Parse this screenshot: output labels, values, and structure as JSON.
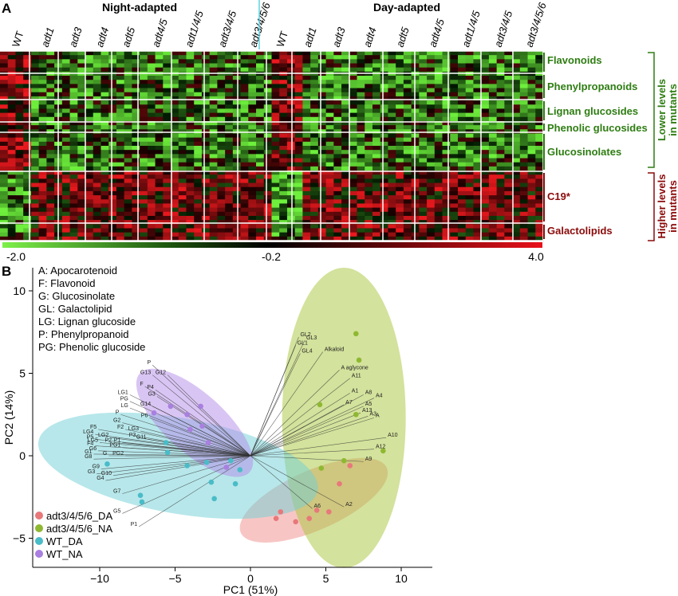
{
  "panel_a": {
    "label": "A",
    "header_left": "Night-adapted",
    "header_right": "Day-adapted",
    "columns_left": [
      "WT",
      "adt1",
      "adt3",
      "adt4",
      "adt5",
      "adt4/5",
      "adt1/4/5",
      "adt3/4/5",
      "adt3/4/5/6"
    ],
    "columns_right": [
      "WT",
      "adt1",
      "adt3",
      "adt4",
      "adt5",
      "adt4/5",
      "adt1/4/5",
      "adt3/4/5",
      "adt3/4/5/6"
    ],
    "groups_lower": [
      "Flavonoids",
      "Phenylpropanoids",
      "Lignan glucosides",
      "Phenolic glucosides",
      "Glucosinolates"
    ],
    "groups_higher": [
      "C19*",
      "Galactolipids"
    ],
    "lower_bracket_label": [
      "Lower levels",
      "in mutants"
    ],
    "higher_bracket_label": [
      "Higher levels",
      "in mutants"
    ],
    "scale_min": "-2.0",
    "scale_mid": "-0.2",
    "scale_max": "4.0",
    "colors": {
      "low": "#7df04a",
      "mid": "#000000",
      "high": "#e8101a",
      "lower_text": "#2e7d12",
      "higher_text": "#8b0a0a"
    }
  },
  "panel_b": {
    "label": "B",
    "abbreviations": [
      "A:    Apocarotenoid",
      "F:    Flavonoid",
      "G:    Glucosinolate",
      "GL: Galactolipid",
      "LG: Lignan glucoside",
      "P:    Phenylpropanoid",
      "PG: Phenolic glucoside"
    ],
    "chart_data": {
      "type": "scatter",
      "xlabel": "PC1 (51%)",
      "ylabel": "PC2 (14%)",
      "xlim": [
        -12.5,
        12
      ],
      "ylim": [
        -6.3,
        11.5
      ],
      "xticks": [
        "−10",
        "−5",
        "0",
        "5",
        "10"
      ],
      "yticks": [
        "10",
        "5",
        "0",
        "−5"
      ],
      "series": [
        {
          "name": "adt3/4/5/6_DA",
          "color": "#e8787a",
          "points": [
            [
              1.7,
              -3.8
            ],
            [
              2.0,
              -3.4
            ],
            [
              3.0,
              -4.0
            ],
            [
              3.9,
              -3.8
            ],
            [
              4.4,
              -3.3
            ],
            [
              5.2,
              -3.4
            ],
            [
              5.9,
              -1.7
            ],
            [
              6.6,
              -0.6
            ]
          ]
        },
        {
          "name": "adt3/4/5/6_NA",
          "color": "#8fb832",
          "points": [
            [
              7.0,
              7.4
            ],
            [
              7.2,
              5.8
            ],
            [
              4.6,
              3.1
            ],
            [
              7.0,
              2.5
            ],
            [
              8.8,
              0.3
            ],
            [
              4.7,
              -0.75
            ],
            [
              6.2,
              -0.3
            ]
          ]
        },
        {
          "name": "WT_DA",
          "color": "#49bcc8",
          "points": [
            [
              -9.5,
              -0.5
            ],
            [
              -7.3,
              -2.4
            ],
            [
              -7.2,
              -2.8
            ],
            [
              -5.6,
              0.8
            ],
            [
              -5.5,
              0.2
            ],
            [
              -4.2,
              -0.6
            ],
            [
              -2.9,
              -0.4
            ],
            [
              -2.6,
              -1.6
            ],
            [
              -2.4,
              -2.6
            ],
            [
              -1.3,
              -0.3
            ],
            [
              -1.0,
              -1.7
            ],
            [
              -0.7,
              -0.85
            ]
          ]
        },
        {
          "name": "WT_NA",
          "color": "#a97fe0",
          "points": [
            [
              -6.4,
              2.6
            ],
            [
              -5.3,
              3.0
            ],
            [
              -4.2,
              2.5
            ],
            [
              -4.0,
              1.6
            ],
            [
              -3.3,
              3.0
            ],
            [
              -3.2,
              1.8
            ],
            [
              -2.8,
              0.8
            ],
            [
              -1.6,
              -0.7
            ]
          ]
        }
      ],
      "ellipses": [
        {
          "series": "adt3/4/5/6_DA",
          "center": [
            4.2,
            -2.7
          ],
          "rx": 5.3,
          "ry": 1.8,
          "angle_deg": 24,
          "color": "#f08d8a"
        },
        {
          "series": "adt3/4/5/6_NA",
          "center": [
            6.2,
            2.3
          ],
          "rx": 4.1,
          "ry": 9.1,
          "angle_deg": 0,
          "color": "#a7c63a"
        },
        {
          "series": "WT_DA",
          "center": [
            -4.8,
            -0.6
          ],
          "rx": 9.4,
          "ry": 2.9,
          "angle_deg": -10,
          "color": "#6fcfd6"
        },
        {
          "series": "WT_NA",
          "center": [
            -3.7,
            2.0
          ],
          "rx": 4.9,
          "ry": 1.8,
          "angle_deg": -42,
          "color": "#b48be8"
        }
      ],
      "loadings": [
        {
          "label": "GL2",
          "x": 3.2,
          "y": 7.2
        },
        {
          "label": "GL3",
          "x": 3.6,
          "y": 7.0
        },
        {
          "label": "GL1",
          "x": 3.0,
          "y": 6.7
        },
        {
          "label": "GL4",
          "x": 3.3,
          "y": 6.2
        },
        {
          "label": "Alkaloid",
          "x": 4.8,
          "y": 6.3
        },
        {
          "label": "A  aglycone",
          "x": 5.9,
          "y": 5.2
        },
        {
          "label": "A11",
          "x": 6.6,
          "y": 4.7
        },
        {
          "label": "A1",
          "x": 6.6,
          "y": 3.8
        },
        {
          "label": "A8",
          "x": 7.5,
          "y": 3.7
        },
        {
          "label": "A4",
          "x": 8.2,
          "y": 3.5
        },
        {
          "label": "A7",
          "x": 6.2,
          "y": 3.1
        },
        {
          "label": "A5",
          "x": 7.5,
          "y": 3.0
        },
        {
          "label": "A13",
          "x": 7.3,
          "y": 2.6
        },
        {
          "label": "A3",
          "x": 7.8,
          "y": 2.4
        },
        {
          "label": "A",
          "x": 8.2,
          "y": 2.3
        },
        {
          "label": "A10",
          "x": 9.0,
          "y": 1.1
        },
        {
          "label": "A12",
          "x": 8.2,
          "y": 0.4
        },
        {
          "label": "A9",
          "x": 7.5,
          "y": -0.35
        },
        {
          "label": "A2",
          "x": 6.2,
          "y": -3.1
        },
        {
          "label": "A6",
          "x": 4.1,
          "y": -3.2
        },
        {
          "label": "P",
          "x": -6.5,
          "y": 5.5
        },
        {
          "label": "G13",
          "x": -6.5,
          "y": 4.9
        },
        {
          "label": "G12",
          "x": -5.5,
          "y": 4.9
        },
        {
          "label": "F",
          "x": -7.0,
          "y": 4.2
        },
        {
          "label": "P4",
          "x": -6.3,
          "y": 4.0
        },
        {
          "label": "G3",
          "x": -6.2,
          "y": 3.6
        },
        {
          "label": "LG1",
          "x": -8.0,
          "y": 3.7
        },
        {
          "label": "PG",
          "x": -8.0,
          "y": 3.3
        },
        {
          "label": "LG",
          "x": -8.0,
          "y": 2.9
        },
        {
          "label": "G14",
          "x": -6.5,
          "y": 3.0
        },
        {
          "label": "P",
          "x": -8.6,
          "y": 2.5
        },
        {
          "label": "P6",
          "x": -6.7,
          "y": 2.3
        },
        {
          "label": "G2",
          "x": -8.5,
          "y": 2.0
        },
        {
          "label": "F5",
          "x": -10.1,
          "y": 1.6
        },
        {
          "label": "F2",
          "x": -8.3,
          "y": 1.6
        },
        {
          "label": "LG3",
          "x": -7.3,
          "y": 1.5
        },
        {
          "label": "LG4",
          "x": -10.3,
          "y": 1.3
        },
        {
          "label": "G11",
          "x": -6.8,
          "y": 1.0
        },
        {
          "label": "P5",
          "x": -10.3,
          "y": 1.0
        },
        {
          "label": "LG2",
          "x": -9.3,
          "y": 1.1
        },
        {
          "label": "P3",
          "x": -7.5,
          "y": 1.1
        },
        {
          "label": "LG5",
          "x": -10.0,
          "y": 0.8
        },
        {
          "label": "PG1",
          "x": -8.5,
          "y": 0.5
        },
        {
          "label": "P2",
          "x": -9.1,
          "y": 0.8
        },
        {
          "label": "P1",
          "x": -8.5,
          "y": 0.8
        },
        {
          "label": "F4",
          "x": -10.3,
          "y": 0.6
        },
        {
          "label": "G6",
          "x": -10.1,
          "y": 0.3
        },
        {
          "label": "PG2",
          "x": -8.3,
          "y": 0.0
        },
        {
          "label": "G1",
          "x": -10.4,
          "y": 0.1
        },
        {
          "label": "G",
          "x": -9.4,
          "y": 0.0
        },
        {
          "label": "G8",
          "x": -10.4,
          "y": -0.2
        },
        {
          "label": "G9",
          "x": -9.9,
          "y": -0.8
        },
        {
          "label": "G3",
          "x": -10.2,
          "y": -1.1
        },
        {
          "label": "G10",
          "x": -9.1,
          "y": -1.2
        },
        {
          "label": "G4",
          "x": -9.6,
          "y": -1.5
        },
        {
          "label": "G7",
          "x": -8.5,
          "y": -2.3
        },
        {
          "label": "G5",
          "x": -8.5,
          "y": -3.5
        },
        {
          "label": "P1",
          "x": -7.4,
          "y": -4.3
        }
      ]
    }
  }
}
